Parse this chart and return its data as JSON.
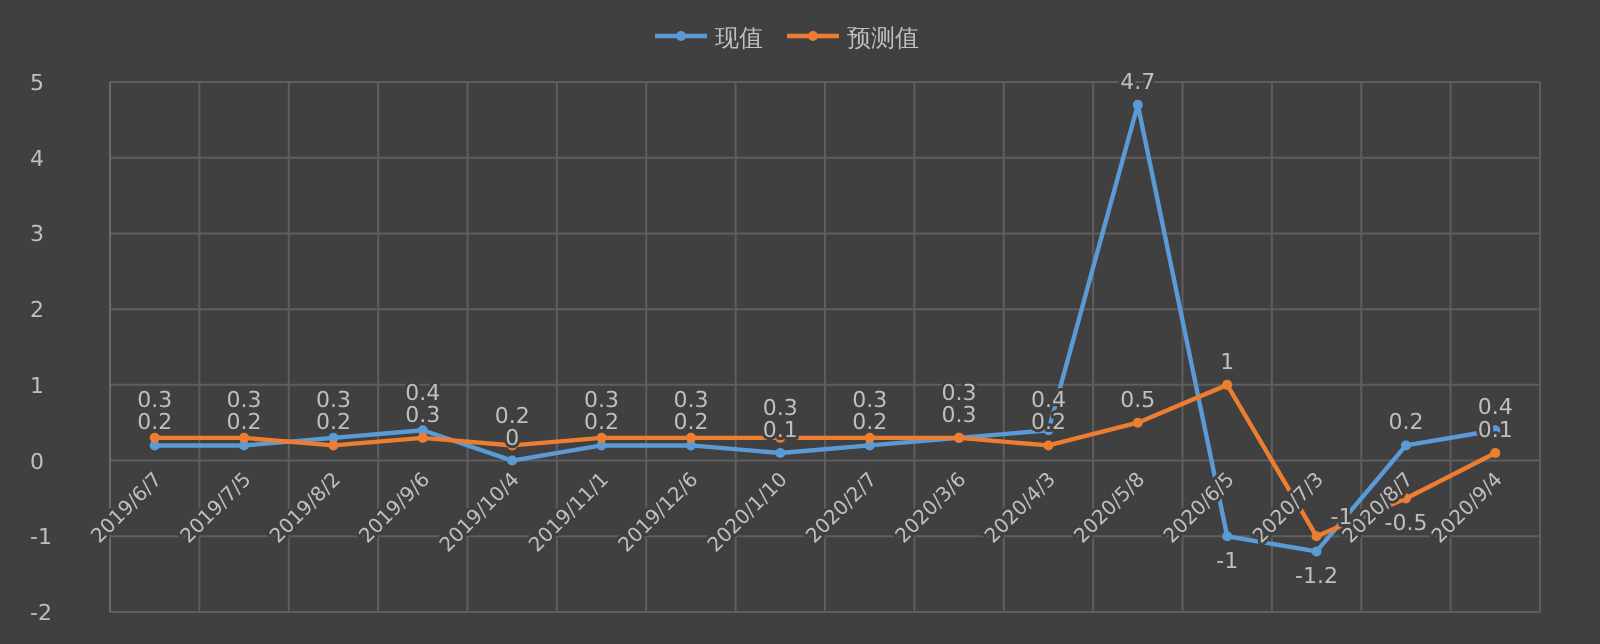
{
  "chart_data": {
    "type": "line",
    "categories": [
      "2019/6/7",
      "2019/7/5",
      "2019/8/2",
      "2019/9/6",
      "2019/10/4",
      "2019/11/1",
      "2019/12/6",
      "2020/1/10",
      "2020/2/7",
      "2020/3/6",
      "2020/4/3",
      "2020/5/8",
      "2020/6/5",
      "2020/7/3",
      "2020/8/7",
      "2020/9/4"
    ],
    "series": [
      {
        "name": "现值",
        "color": "#5b9bd5",
        "values": [
          0.2,
          0.2,
          0.3,
          0.4,
          0,
          0.2,
          0.2,
          0.1,
          0.2,
          0.3,
          0.4,
          4.7,
          -1,
          -1.2,
          0.2,
          0.4
        ]
      },
      {
        "name": "预测值",
        "color": "#ed7d31",
        "values": [
          0.3,
          0.3,
          0.2,
          0.3,
          0.2,
          0.3,
          0.3,
          0.3,
          0.3,
          0.3,
          0.2,
          0.5,
          1,
          -1,
          -0.5,
          0.1
        ]
      }
    ],
    "ylim": [
      -2,
      5
    ],
    "yticks": [
      -2,
      -1,
      0,
      1,
      2,
      3,
      4,
      5
    ],
    "grid": true,
    "legend": "top",
    "marker": "circle",
    "line_style": "solid",
    "data_labels": true
  }
}
